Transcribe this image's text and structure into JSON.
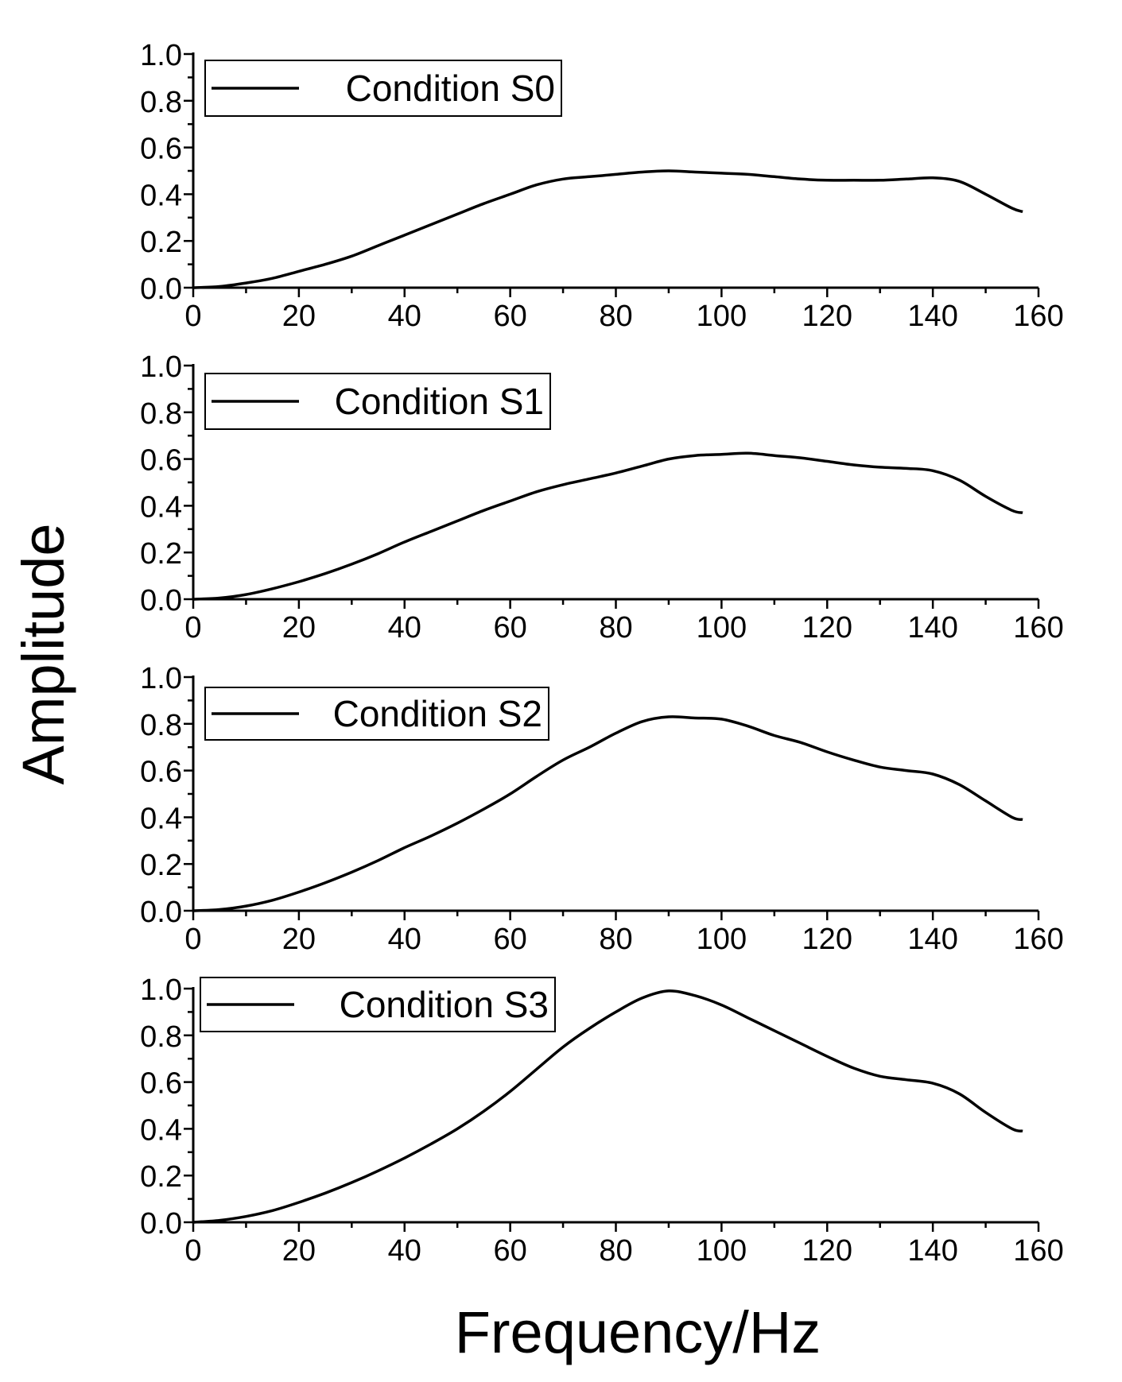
{
  "chart_data": [
    {
      "type": "line",
      "xlim": [
        0,
        160
      ],
      "ylim": [
        0,
        1.0
      ],
      "x_ticks": [
        "0",
        "20",
        "40",
        "60",
        "80",
        "100",
        "120",
        "140",
        "160"
      ],
      "y_ticks": [
        "0.0",
        "0.2",
        "0.4",
        "0.6",
        "0.8",
        "1.0"
      ],
      "grid": false,
      "legend_position": "top-left",
      "series": [
        {
          "name": "Condition S0",
          "x": [
            0,
            5,
            10,
            15,
            20,
            25,
            30,
            35,
            40,
            45,
            50,
            55,
            60,
            65,
            70,
            75,
            80,
            85,
            90,
            95,
            100,
            105,
            110,
            115,
            120,
            125,
            130,
            135,
            140,
            145,
            150,
            155,
            157
          ],
          "y": [
            0.0,
            0.005,
            0.02,
            0.04,
            0.07,
            0.1,
            0.135,
            0.18,
            0.225,
            0.27,
            0.315,
            0.36,
            0.4,
            0.44,
            0.465,
            0.475,
            0.485,
            0.495,
            0.5,
            0.495,
            0.49,
            0.485,
            0.475,
            0.465,
            0.46,
            0.46,
            0.46,
            0.465,
            0.47,
            0.455,
            0.4,
            0.34,
            0.325
          ]
        }
      ]
    },
    {
      "type": "line",
      "xlim": [
        0,
        160
      ],
      "ylim": [
        0,
        1.0
      ],
      "x_ticks": [
        "0",
        "20",
        "40",
        "60",
        "80",
        "100",
        "120",
        "140",
        "160"
      ],
      "y_ticks": [
        "0.0",
        "0.2",
        "0.4",
        "0.6",
        "0.8",
        "1.0"
      ],
      "grid": false,
      "legend_position": "top-left",
      "series": [
        {
          "name": "Condition S1",
          "x": [
            0,
            5,
            10,
            15,
            20,
            25,
            30,
            35,
            40,
            45,
            50,
            55,
            60,
            65,
            70,
            75,
            80,
            85,
            90,
            95,
            100,
            105,
            110,
            115,
            120,
            125,
            130,
            135,
            140,
            145,
            150,
            155,
            157
          ],
          "y": [
            0.0,
            0.005,
            0.02,
            0.045,
            0.075,
            0.11,
            0.15,
            0.195,
            0.245,
            0.29,
            0.335,
            0.38,
            0.42,
            0.46,
            0.49,
            0.515,
            0.54,
            0.57,
            0.6,
            0.615,
            0.62,
            0.625,
            0.615,
            0.605,
            0.59,
            0.575,
            0.565,
            0.56,
            0.55,
            0.51,
            0.44,
            0.38,
            0.37
          ]
        }
      ]
    },
    {
      "type": "line",
      "xlim": [
        0,
        160
      ],
      "ylim": [
        0,
        1.0
      ],
      "x_ticks": [
        "0",
        "20",
        "40",
        "60",
        "80",
        "100",
        "120",
        "140",
        "160"
      ],
      "y_ticks": [
        "0.0",
        "0.2",
        "0.4",
        "0.6",
        "0.8",
        "1.0"
      ],
      "grid": false,
      "legend_position": "top-left",
      "series": [
        {
          "name": "Condition S2",
          "x": [
            0,
            5,
            10,
            15,
            20,
            25,
            30,
            35,
            40,
            45,
            50,
            55,
            60,
            65,
            70,
            75,
            80,
            85,
            90,
            95,
            100,
            105,
            110,
            115,
            120,
            125,
            130,
            135,
            140,
            145,
            150,
            155,
            157
          ],
          "y": [
            0.0,
            0.005,
            0.02,
            0.045,
            0.08,
            0.12,
            0.165,
            0.215,
            0.27,
            0.32,
            0.375,
            0.435,
            0.5,
            0.575,
            0.645,
            0.7,
            0.76,
            0.81,
            0.83,
            0.825,
            0.82,
            0.79,
            0.75,
            0.72,
            0.68,
            0.645,
            0.615,
            0.6,
            0.585,
            0.54,
            0.47,
            0.4,
            0.39
          ]
        }
      ]
    },
    {
      "type": "line",
      "xlim": [
        0,
        160
      ],
      "ylim": [
        0,
        1.0
      ],
      "x_ticks": [
        "0",
        "20",
        "40",
        "60",
        "80",
        "100",
        "120",
        "140",
        "160"
      ],
      "y_ticks": [
        "0.0",
        "0.2",
        "0.4",
        "0.6",
        "0.8",
        "1.0"
      ],
      "grid": false,
      "legend_position": "top-left",
      "series": [
        {
          "name": "Condition S3",
          "x": [
            0,
            5,
            10,
            15,
            20,
            25,
            30,
            35,
            40,
            45,
            50,
            55,
            60,
            65,
            70,
            75,
            80,
            85,
            90,
            95,
            100,
            105,
            110,
            115,
            120,
            125,
            130,
            135,
            140,
            145,
            150,
            155,
            157
          ],
          "y": [
            0.0,
            0.008,
            0.025,
            0.05,
            0.085,
            0.125,
            0.17,
            0.22,
            0.275,
            0.335,
            0.4,
            0.475,
            0.56,
            0.655,
            0.75,
            0.83,
            0.9,
            0.96,
            0.99,
            0.97,
            0.93,
            0.875,
            0.82,
            0.765,
            0.71,
            0.66,
            0.625,
            0.61,
            0.595,
            0.55,
            0.47,
            0.4,
            0.39
          ]
        }
      ]
    }
  ],
  "figure": {
    "ylabel": "Amplitude",
    "xlabel": "Frequency/Hz"
  },
  "colors": {
    "line": "#000000",
    "background": "#ffffff"
  }
}
